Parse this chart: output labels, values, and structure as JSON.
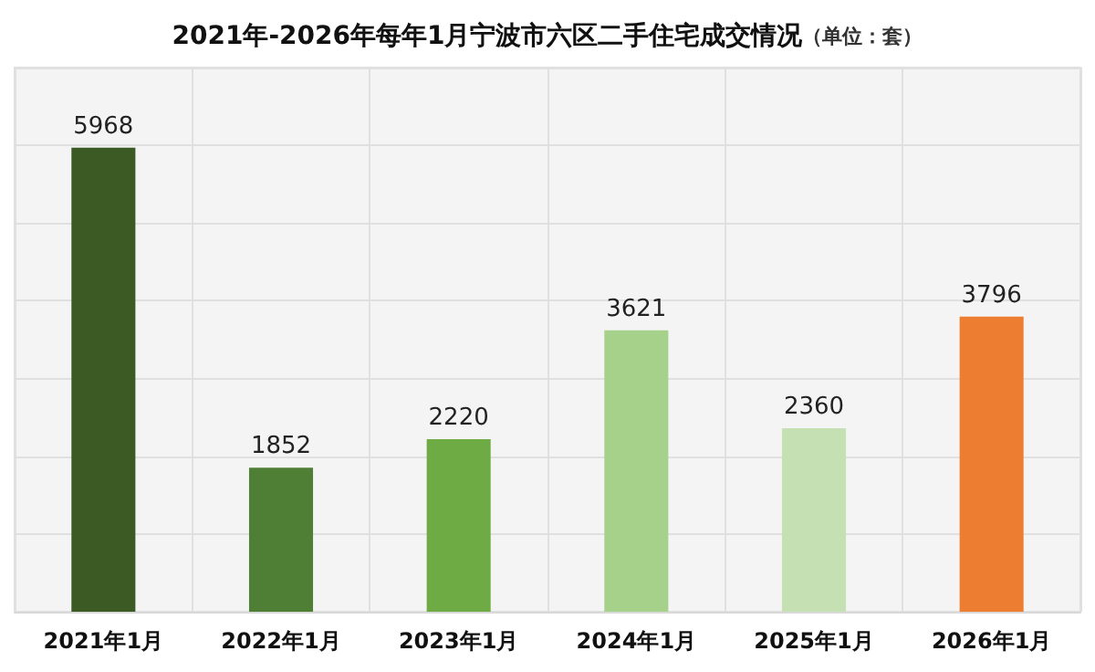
{
  "chart_data": {
    "type": "bar",
    "title": "2021年-2026年每年1月宁波市六区二手住宅成交情况",
    "subtitle": "（单位：套）",
    "categories": [
      "2021年1月",
      "2022年1月",
      "2023年1月",
      "2024年1月",
      "2025年1月",
      "2026年1月"
    ],
    "values": [
      5968,
      1852,
      2220,
      3621,
      2360,
      3796
    ],
    "colors": [
      "#3b5a24",
      "#4f7f34",
      "#6fab45",
      "#a6d18b",
      "#c5e0b3",
      "#ed7d31"
    ],
    "ylim": [
      0,
      7000
    ],
    "yticks": [
      {
        "value": 0,
        "label": null
      },
      {
        "value": 1000,
        "label": null
      },
      {
        "value": 2000,
        "label": null
      },
      {
        "value": 3000,
        "label": null
      },
      {
        "value": 4000,
        "label": null
      },
      {
        "value": 5000,
        "label": null
      },
      {
        "value": 6000,
        "label": null
      },
      {
        "value": 7000,
        "label": null
      }
    ],
    "tick_labels": "x",
    "grid": true,
    "data_labels": true
  }
}
